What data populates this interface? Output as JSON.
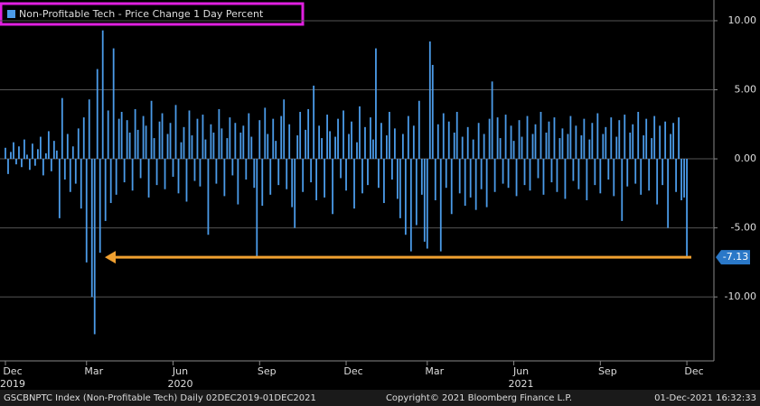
{
  "chart_data": {
    "type": "bar",
    "title": "Non-Profitable Tech - Price Change 1 Day Percent",
    "color": "#4b9be8",
    "values": [
      0.8,
      -1.1,
      0.5,
      1.2,
      -0.4,
      0.9,
      -0.6,
      1.4,
      0.3,
      -0.8,
      1.1,
      -0.5,
      0.7,
      1.6,
      -1.2,
      0.4,
      2.0,
      -0.9,
      1.3,
      0.6,
      -4.3,
      4.4,
      -1.5,
      1.8,
      -2.4,
      0.9,
      -1.8,
      2.2,
      -3.6,
      3.0,
      -7.5,
      4.3,
      -10.0,
      -12.7,
      6.5,
      -6.8,
      9.3,
      -4.5,
      3.5,
      -3.2,
      8.0,
      -2.6,
      2.9,
      3.4,
      -1.7,
      2.8,
      1.9,
      -2.3,
      3.6,
      2.1,
      -1.4,
      3.1,
      2.4,
      -2.8,
      4.2,
      1.5,
      -1.9,
      2.7,
      3.3,
      -2.2,
      1.8,
      2.6,
      -1.3,
      3.9,
      -2.5,
      1.2,
      2.3,
      -3.1,
      3.5,
      1.7,
      -1.6,
      2.9,
      -2.0,
      3.2,
      1.4,
      -5.5,
      2.5,
      1.9,
      -1.8,
      3.6,
      2.2,
      -2.7,
      1.5,
      3.0,
      -1.2,
      2.6,
      -3.3,
      1.9,
      2.4,
      -1.5,
      3.3,
      1.6,
      -2.1,
      -7.1,
      2.8,
      -3.4,
      3.7,
      1.8,
      -2.6,
      2.9,
      1.3,
      -1.9,
      3.1,
      4.3,
      -2.2,
      2.5,
      -3.5,
      -5.0,
      1.7,
      3.4,
      -2.4,
      2.1,
      3.6,
      -1.7,
      5.3,
      -3.0,
      2.4,
      1.5,
      -2.8,
      3.2,
      2.0,
      -4.0,
      1.6,
      2.9,
      -1.4,
      3.5,
      -2.3,
      1.8,
      2.7,
      -3.6,
      1.2,
      3.8,
      -2.5,
      2.3,
      -1.9,
      3.0,
      1.4,
      8.0,
      -2.1,
      2.6,
      -3.2,
      1.7,
      3.4,
      -1.5,
      2.2,
      -2.9,
      -4.3,
      1.8,
      -5.5,
      3.1,
      -6.7,
      2.4,
      -4.8,
      4.2,
      -2.6,
      -6.0,
      -6.5,
      8.5,
      6.8,
      -3.0,
      2.5,
      -6.7,
      3.3,
      -2.1,
      2.7,
      -4.0,
      1.9,
      3.4,
      -2.5,
      1.6,
      -3.4,
      2.3,
      -2.8,
      1.4,
      -3.7,
      2.6,
      -2.2,
      1.8,
      -3.5,
      2.9,
      5.6,
      -2.4,
      3.0,
      1.5,
      -1.8,
      3.2,
      -2.1,
      2.4,
      1.3,
      -2.7,
      2.8,
      1.6,
      -1.9,
      3.1,
      -2.3,
      1.8,
      2.5,
      -1.4,
      3.4,
      -2.6,
      1.9,
      2.7,
      -1.7,
      3.0,
      -2.4,
      1.5,
      2.2,
      -2.9,
      1.8,
      3.1,
      -1.6,
      2.4,
      -2.2,
      1.7,
      2.9,
      -3.0,
      1.4,
      2.6,
      -1.9,
      3.3,
      -2.5,
      1.8,
      2.3,
      -1.5,
      3.0,
      -2.7,
      1.6,
      2.8,
      -4.5,
      3.2,
      -2.0,
      1.9,
      2.5,
      -1.8,
      3.4,
      -2.6,
      1.7,
      2.9,
      -2.3,
      1.5,
      3.1,
      -3.3,
      2.4,
      -1.9,
      2.7,
      -5.0,
      1.8,
      2.6,
      -2.4,
      3.0,
      -3.0,
      -2.8,
      -7.13
    ],
    "xlim": [
      -2,
      262
    ],
    "xticks": [
      {
        "value": 0,
        "label": "Dec"
      },
      {
        "value": 30,
        "label": "Mar"
      },
      {
        "value": 62,
        "label": "Jun"
      },
      {
        "value": 94,
        "label": "Sep"
      },
      {
        "value": 126,
        "label": "Dec"
      },
      {
        "value": 156,
        "label": "Mar"
      },
      {
        "value": 188,
        "label": "Jun"
      },
      {
        "value": 220,
        "label": "Sep"
      },
      {
        "value": 252,
        "label": "Dec"
      }
    ],
    "year_ticks": [
      {
        "value": 0,
        "label": "2019"
      },
      {
        "value": 62,
        "label": "2020"
      },
      {
        "value": 188,
        "label": "2021"
      }
    ],
    "ylim": [
      -14.5,
      11.5
    ],
    "yticks": [
      {
        "value": 10,
        "label": "10.00"
      },
      {
        "value": 5,
        "label": "5.00"
      },
      {
        "value": 0,
        "label": "0.00"
      },
      {
        "value": -5,
        "label": "-5.00"
      },
      {
        "value": -10,
        "label": "-10.00"
      }
    ],
    "grid": true,
    "annotation_value": -7.13,
    "footer": {
      "left": "GSCBNPTC Index (Non-Profitable Tech)  Daily 02DEC2019-01DEC2021",
      "center": "Copyright© 2021 Bloomberg Finance L.P.",
      "right": "01-Dec-2021 16:32:33"
    }
  }
}
